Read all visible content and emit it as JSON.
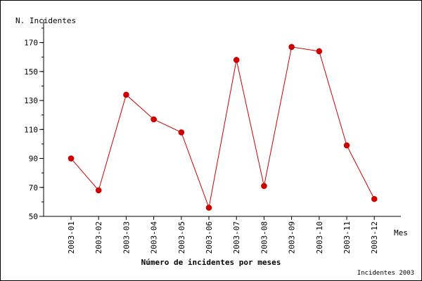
{
  "chart_data": {
    "type": "line",
    "title": "Número de incidentes por meses",
    "xlabel": "Mes",
    "ylabel": "N. Incidentes",
    "footer": "Incidentes 2003",
    "categories": [
      "2003-01",
      "2003-02",
      "2003-03",
      "2003-04",
      "2003-05",
      "2003-06",
      "2003-07",
      "2003-08",
      "2003-09",
      "2003-10",
      "2003-11",
      "2003-12"
    ],
    "series": [
      {
        "values": [
          90,
          68,
          134,
          117,
          108,
          56,
          158,
          71,
          167,
          164,
          99,
          62
        ]
      }
    ],
    "ylim": [
      50,
      180
    ],
    "yticks": [
      50,
      70,
      90,
      110,
      130,
      150,
      170
    ],
    "minor_ytick_step": 10,
    "grid": false,
    "line_color": "#cc0000",
    "marker_color": "#cc0000",
    "axis_color": "#000000"
  }
}
